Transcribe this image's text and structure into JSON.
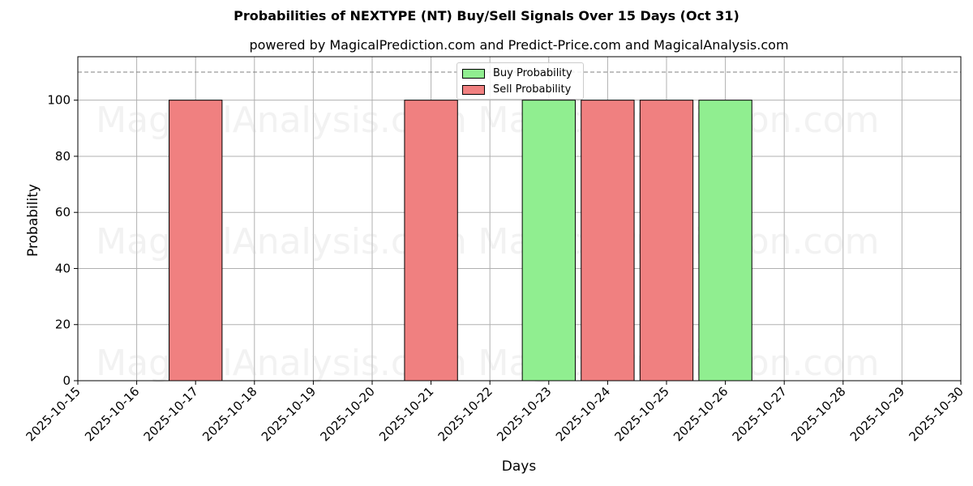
{
  "title": "Probabilities of NEXTYPE (NT) Buy/Sell Signals Over 15 Days (Oct 31)",
  "subtitle": "powered by MagicalPrediction.com and Predict-Price.com and MagicalAnalysis.com",
  "legend": {
    "buy_label": "Buy Probability",
    "sell_label": "Sell Probability"
  },
  "colors": {
    "buy": "#90ee90",
    "sell": "#f08080",
    "threshold_line": "#808080",
    "grid": "#b0b0b0"
  },
  "watermarks": [
    "MagicalAnalysis.com",
    "MagicalPrediction.com"
  ],
  "chart_data": {
    "type": "bar",
    "title": "Probabilities of NEXTYPE (NT) Buy/Sell Signals Over 15 Days (Oct 31)",
    "subtitle": "powered by MagicalPrediction.com and Predict-Price.com and MagicalAnalysis.com",
    "xlabel": "Days",
    "ylabel": "Probability",
    "ylim": [
      0,
      115.5
    ],
    "yticks": [
      0,
      20,
      40,
      60,
      80,
      100
    ],
    "xticks": [
      "2025-10-15",
      "2025-10-16",
      "2025-10-17",
      "2025-10-18",
      "2025-10-19",
      "2025-10-20",
      "2025-10-21",
      "2025-10-22",
      "2025-10-23",
      "2025-10-24",
      "2025-10-25",
      "2025-10-26",
      "2025-10-27",
      "2025-10-28",
      "2025-10-29",
      "2025-10-30"
    ],
    "grid": true,
    "legend_position": "upper center",
    "threshold_line": {
      "y": 110,
      "style": "dashed"
    },
    "bars": [
      {
        "date": "2025-10-17",
        "series": "Sell Probability",
        "value": 100
      },
      {
        "date": "2025-10-21",
        "series": "Sell Probability",
        "value": 100
      },
      {
        "date": "2025-10-23",
        "series": "Buy Probability",
        "value": 100
      },
      {
        "date": "2025-10-24",
        "series": "Sell Probability",
        "value": 100
      },
      {
        "date": "2025-10-25",
        "series": "Sell Probability",
        "value": 100
      },
      {
        "date": "2025-10-26",
        "series": "Buy Probability",
        "value": 100
      }
    ],
    "series": [
      {
        "name": "Buy Probability",
        "color": "#90ee90",
        "x": [
          "2025-10-23",
          "2025-10-26"
        ],
        "values": [
          100,
          100
        ]
      },
      {
        "name": "Sell Probability",
        "color": "#f08080",
        "x": [
          "2025-10-17",
          "2025-10-21",
          "2025-10-24",
          "2025-10-25"
        ],
        "values": [
          100,
          100,
          100,
          100
        ]
      }
    ]
  }
}
